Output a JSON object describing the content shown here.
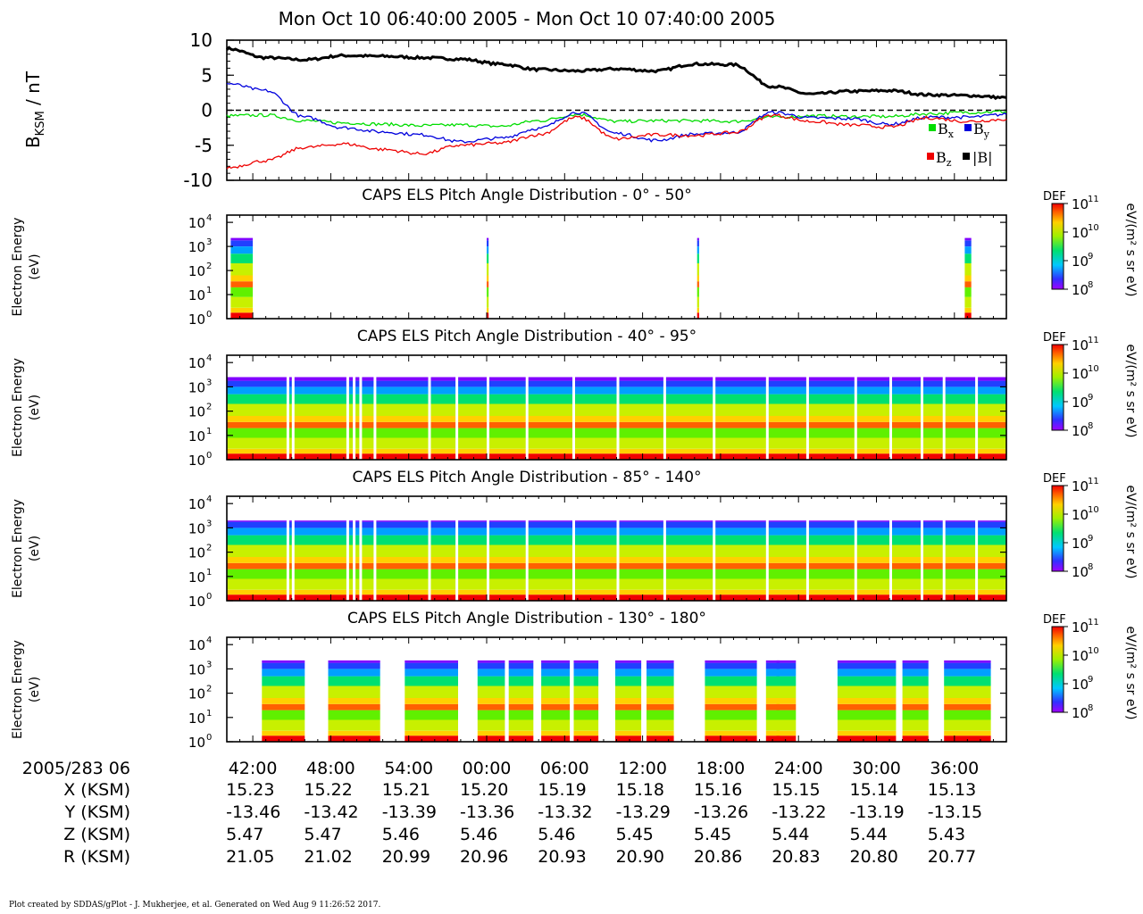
{
  "title": "Mon Oct 10 06:40:00 2005 - Mon Oct 10 07:40:00 2005",
  "footer": "Plot created by SDDAS/gPlot - J. Mukherjee, et al.  Generated on Wed Aug 9 11:26:52 2017.",
  "colors": {
    "bx": "#00dd00",
    "by": "#0000dd",
    "bz": "#ee0000",
    "btot": "#000000"
  },
  "chart_data": [
    {
      "type": "line",
      "ylabel_main": "B",
      "ylabel_sub": "KSM",
      "ylabel_unit": " / nT",
      "ylim": [
        -10,
        10
      ],
      "yticks": [
        "10",
        "5",
        "0",
        "-5",
        "-10"
      ],
      "reference_line": 0,
      "legend": {
        "placement": "bottom-right",
        "entries": [
          {
            "key": "bx",
            "main": "B",
            "sub": "x"
          },
          {
            "key": "by",
            "main": "B",
            "sub": "y"
          },
          {
            "key": "bz",
            "main": "B",
            "sub": "z"
          },
          {
            "key": "btot",
            "main": "|B|",
            "sub": ""
          }
        ]
      },
      "x": [
        0,
        3,
        6,
        9,
        12,
        15,
        18,
        21,
        24,
        27,
        30,
        33,
        36,
        39,
        42,
        45,
        48,
        51,
        54,
        57,
        60
      ],
      "series": [
        {
          "key": "btot",
          "values": [
            8.8,
            7.5,
            7.2,
            7.8,
            7.7,
            7.5,
            7.3,
            6.6,
            5.8,
            5.6,
            5.9,
            5.6,
            6.6,
            6.5,
            3.4,
            2.3,
            2.7,
            2.8,
            2.2,
            2.1,
            1.8
          ]
        },
        {
          "key": "bx",
          "values": [
            -0.8,
            -0.7,
            -1.5,
            -1.8,
            -2.0,
            -2.2,
            -2.1,
            -2.3,
            -1.5,
            -0.6,
            -1.6,
            -1.5,
            -1.5,
            -1.6,
            -1.0,
            -0.8,
            -0.9,
            -0.9,
            -0.5,
            -0.3,
            -0.2
          ]
        },
        {
          "key": "by",
          "values": [
            3.8,
            2.8,
            -1.0,
            -2.5,
            -3.1,
            -3.5,
            -4.5,
            -4.0,
            -2.6,
            -0.3,
            -3.3,
            -4.3,
            -3.4,
            -3.2,
            -0.3,
            -1.1,
            -1.2,
            -2.0,
            -1.0,
            -1.0,
            -0.6
          ]
        },
        {
          "key": "bz",
          "values": [
            -8.2,
            -7.2,
            -5.3,
            -4.8,
            -5.6,
            -6.2,
            -5.0,
            -4.7,
            -3.5,
            -1.0,
            -4.1,
            -3.5,
            -3.6,
            -3.2,
            -0.7,
            -1.6,
            -2.1,
            -2.4,
            -1.1,
            -1.6,
            -1.3
          ]
        }
      ]
    },
    {
      "type": "heatmap",
      "title": "CAPS ELS Pitch Angle Distribution - 0° - 50°",
      "ylabel": [
        "Electron Energy",
        "(eV)"
      ],
      "ylim": [
        1,
        20000
      ],
      "ytick_exponents": [
        "0",
        "1",
        "2",
        "3",
        "4"
      ],
      "ytick_base": "10",
      "data_intervals": [
        [
          0.3,
          2.0
        ],
        [
          20.0,
          20.15
        ],
        [
          36.2,
          36.35
        ],
        [
          56.8,
          57.3
        ]
      ]
    },
    {
      "type": "heatmap",
      "title": "CAPS ELS Pitch Angle Distribution - 40° - 95°",
      "ylabel": [
        "Electron Energy",
        "(eV)"
      ],
      "ylim": [
        1,
        20000
      ],
      "ytick_exponents": [
        "0",
        "1",
        "2",
        "3",
        "4"
      ],
      "ytick_base": "10",
      "data_intervals": [
        [
          0,
          60
        ]
      ]
    },
    {
      "type": "heatmap",
      "title": "CAPS ELS Pitch Angle Distribution - 85° - 140°",
      "ylabel": [
        "Electron Energy",
        "(eV)"
      ],
      "ylim": [
        1,
        20000
      ],
      "ytick_exponents": [
        "0",
        "1",
        "2",
        "3",
        "4"
      ],
      "ytick_base": "10",
      "data_intervals": [
        [
          0,
          60
        ]
      ]
    },
    {
      "type": "heatmap",
      "title": "CAPS ELS Pitch Angle Distribution - 130° - 180°",
      "ylabel": [
        "Electron Energy",
        "(eV)"
      ],
      "ylim": [
        1,
        20000
      ],
      "ytick_exponents": [
        "0",
        "1",
        "2",
        "3",
        "4"
      ],
      "ytick_base": "10",
      "data_intervals": [
        [
          2.7,
          6.0
        ],
        [
          7.8,
          11.8
        ],
        [
          13.7,
          17.8
        ],
        [
          19.3,
          21.4
        ],
        [
          21.7,
          23.6
        ],
        [
          24.2,
          26.4
        ],
        [
          26.7,
          28.6
        ],
        [
          29.9,
          31.9
        ],
        [
          32.3,
          34.4
        ],
        [
          36.8,
          40.8
        ],
        [
          41.5,
          43.8
        ],
        [
          42.3,
          42.55
        ],
        [
          47.0,
          51.5
        ],
        [
          52.0,
          54.0
        ],
        [
          55.2,
          58.8
        ]
      ]
    }
  ],
  "colorbar": {
    "label": "DEF",
    "unit": "eV/(m² s sr eV)",
    "tick_base": "10",
    "tick_exponents": [
      "11",
      "10",
      "9",
      "8"
    ]
  },
  "time_axis": {
    "row_label": "2005/283 06",
    "labels": [
      "42:00",
      "48:00",
      "54:00",
      "00:00",
      "06:00",
      "12:00",
      "18:00",
      "24:00",
      "30:00",
      "36:00"
    ],
    "tick_minutes": [
      2,
      8,
      14,
      20,
      26,
      32,
      38,
      44,
      50,
      56
    ]
  },
  "ephemeris": [
    {
      "label": "X (KSM)",
      "values": [
        "15.23",
        "15.22",
        "15.21",
        "15.20",
        "15.19",
        "15.18",
        "15.16",
        "15.15",
        "15.14",
        "15.13"
      ]
    },
    {
      "label": "Y (KSM)",
      "values": [
        "-13.46",
        "-13.42",
        "-13.39",
        "-13.36",
        "-13.32",
        "-13.29",
        "-13.26",
        "-13.22",
        "-13.19",
        "-13.15"
      ]
    },
    {
      "label": "Z (KSM)",
      "values": [
        "5.47",
        "5.47",
        "5.46",
        "5.46",
        "5.46",
        "5.45",
        "5.45",
        "5.44",
        "5.44",
        "5.43"
      ]
    },
    {
      "label": "R (KSM)",
      "values": [
        "21.05",
        "21.02",
        "20.99",
        "20.96",
        "20.93",
        "20.90",
        "20.86",
        "20.83",
        "20.80",
        "20.77"
      ]
    }
  ]
}
